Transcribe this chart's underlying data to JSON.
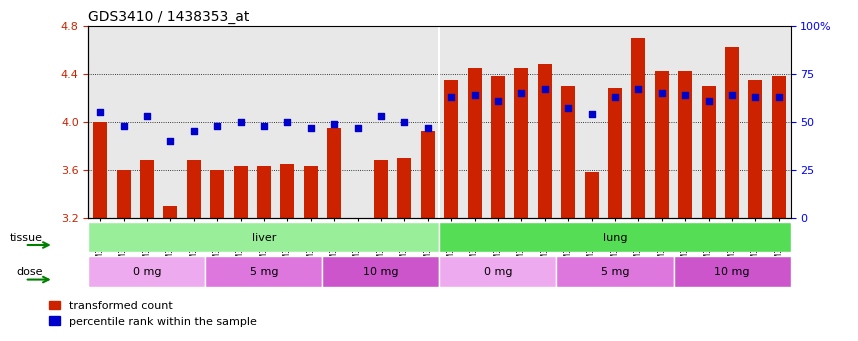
{
  "title": "GDS3410 / 1438353_at",
  "samples": [
    "GSM326944",
    "GSM326946",
    "GSM326948",
    "GSM326950",
    "GSM326952",
    "GSM326954",
    "GSM326956",
    "GSM326958",
    "GSM326960",
    "GSM326962",
    "GSM326964",
    "GSM326966",
    "GSM326968",
    "GSM326970",
    "GSM326972",
    "GSM326943",
    "GSM326945",
    "GSM326947",
    "GSM326949",
    "GSM326951",
    "GSM326953",
    "GSM326955",
    "GSM326957",
    "GSM326959",
    "GSM326961",
    "GSM326963",
    "GSM326965",
    "GSM326967",
    "GSM326969",
    "GSM326971"
  ],
  "bar_values": [
    4.0,
    3.6,
    3.68,
    3.3,
    3.68,
    3.6,
    3.63,
    3.63,
    3.65,
    3.63,
    3.95,
    3.2,
    3.68,
    3.7,
    3.92,
    4.35,
    4.45,
    4.38,
    4.45,
    4.48,
    4.3,
    3.58,
    4.28,
    4.7,
    4.42,
    4.42,
    4.3,
    4.62,
    4.35,
    4.38
  ],
  "dot_percentile": [
    55,
    48,
    53,
    40,
    45,
    48,
    50,
    48,
    50,
    47,
    49,
    47,
    53,
    50,
    47,
    63,
    64,
    61,
    65,
    67,
    57,
    54,
    63,
    67,
    65,
    64,
    61,
    64,
    63,
    63
  ],
  "ylim": [
    3.2,
    4.8
  ],
  "yticks": [
    3.2,
    3.6,
    4.0,
    4.4,
    4.8
  ],
  "y2ticks": [
    0,
    25,
    50,
    75,
    100
  ],
  "bar_color": "#cc2200",
  "dot_color": "#0000cc",
  "bar_bottom": 3.2,
  "tissue_groups": [
    {
      "label": "liver",
      "start": 0,
      "end": 15,
      "color": "#99ee99"
    },
    {
      "label": "lung",
      "start": 15,
      "end": 30,
      "color": "#55dd55"
    }
  ],
  "dose_groups": [
    {
      "label": "0 mg",
      "start": 0,
      "end": 5,
      "color": "#eeaaee"
    },
    {
      "label": "5 mg",
      "start": 5,
      "end": 10,
      "color": "#dd77dd"
    },
    {
      "label": "10 mg",
      "start": 10,
      "end": 15,
      "color": "#cc55cc"
    },
    {
      "label": "0 mg",
      "start": 15,
      "end": 20,
      "color": "#eeaaee"
    },
    {
      "label": "5 mg",
      "start": 20,
      "end": 25,
      "color": "#dd77dd"
    },
    {
      "label": "10 mg",
      "start": 25,
      "end": 30,
      "color": "#cc55cc"
    }
  ],
  "tissue_label": "tissue",
  "dose_label": "dose",
  "legend_bar": "transformed count",
  "legend_dot": "percentile rank within the sample",
  "background_color": "#e8e8e8"
}
